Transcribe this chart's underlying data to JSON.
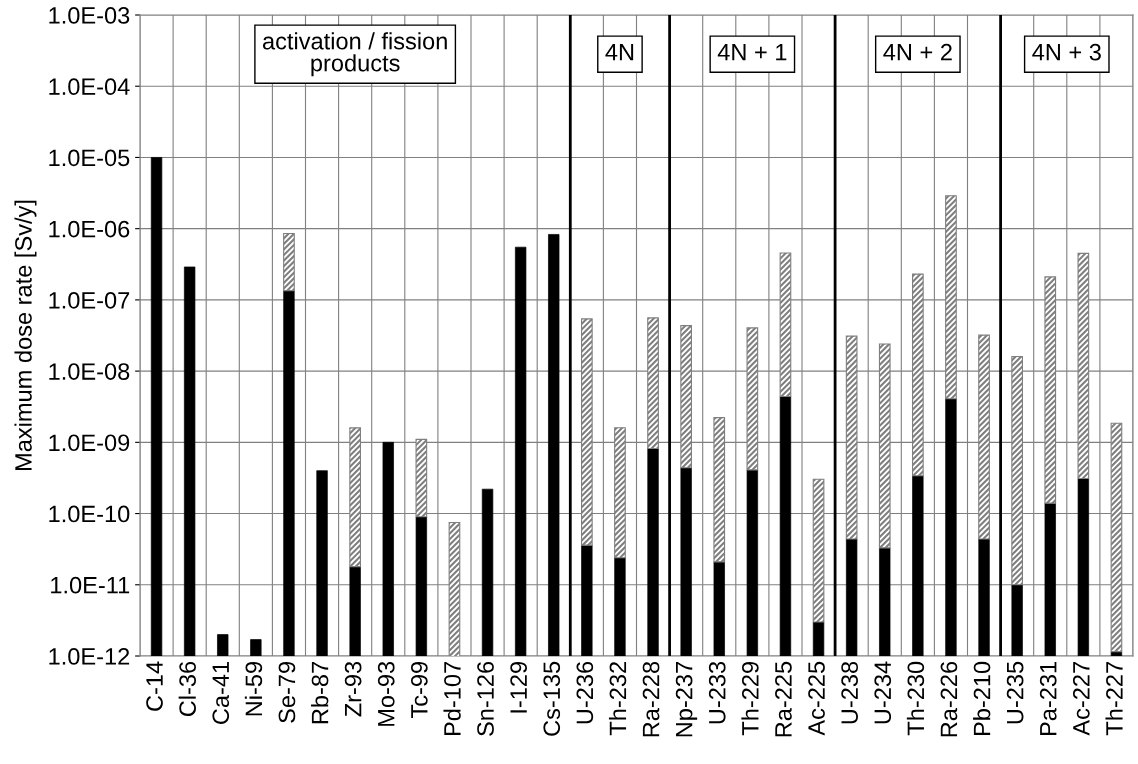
{
  "chart_data": {
    "type": "bar",
    "stacked": true,
    "log": "y",
    "grid": true,
    "ylabel": "Maximum dose rate [Sv/y]",
    "categories": [
      "C-14",
      "Cl-36",
      "Ca-41",
      "Ni-59",
      "Se-79",
      "Rb-87",
      "Zr-93",
      "Mo-93",
      "Tc-99",
      "Pd-107",
      "Sn-126",
      "I-129",
      "Cs-135",
      "U-236",
      "Th-232",
      "Ra-228",
      "Np-237",
      "U-233",
      "Th-229",
      "Ra-225",
      "Ac-225",
      "U-238",
      "U-234",
      "Th-230",
      "Ra-226",
      "Pb-210",
      "U-235",
      "Pa-231",
      "Ac-227",
      "Th-227"
    ],
    "series": [
      {
        "color": "#000000",
        "values": [
          1e-05,
          2.9e-07,
          2e-12,
          1.7e-12,
          1.35e-07,
          4e-10,
          1.8e-11,
          1e-09,
          9e-11,
          null,
          2.2e-10,
          5.5e-07,
          8.3e-07,
          3.6e-11,
          2.4e-11,
          8.2e-10,
          4.4e-10,
          2.1e-11,
          4.1e-10,
          4.4e-09,
          3e-12,
          4.4e-11,
          3.3e-11,
          3.4e-10,
          4.1e-09,
          4.4e-11,
          1e-11,
          1.4e-10,
          3.1e-10,
          1.15e-12
        ]
      },
      {
        "color": "#7f7f7f",
        "values": [
          null,
          null,
          null,
          null,
          7.2e-07,
          null,
          1.58e-09,
          null,
          1.01e-09,
          7.5e-11,
          null,
          null,
          null,
          5.4e-08,
          1.58e-09,
          5.5e-08,
          4.3e-08,
          2.2e-09,
          4e-08,
          4.5e-07,
          3e-10,
          3.1e-08,
          2.4e-08,
          2.3e-07,
          2.9e-06,
          3.2e-08,
          1.6e-08,
          2.1e-07,
          4.5e-07,
          1.85e-09
        ]
      }
    ],
    "ylim": [
      1e-12,
      0.001
    ],
    "yticks": [
      {
        "value": 1e-12,
        "label": "1.0E-12"
      },
      {
        "value": 1e-11,
        "label": "1.0E-11"
      },
      {
        "value": 1e-10,
        "label": "1.0E-10"
      },
      {
        "value": 1e-09,
        "label": "1.0E-09"
      },
      {
        "value": 1e-08,
        "label": "1.0E-08"
      },
      {
        "value": 1e-07,
        "label": "1.0E-07"
      },
      {
        "value": 1e-06,
        "label": "1.0E-06"
      },
      {
        "value": 1e-05,
        "label": "1.0E-05"
      },
      {
        "value": 0.0001,
        "label": "1.0E-04"
      },
      {
        "value": 0.001,
        "label": "1.0E-03"
      }
    ],
    "annotations": [
      "activation / fission\nproducts",
      "4N",
      "4N + 1",
      "4N + 2",
      "4N + 3"
    ]
  }
}
